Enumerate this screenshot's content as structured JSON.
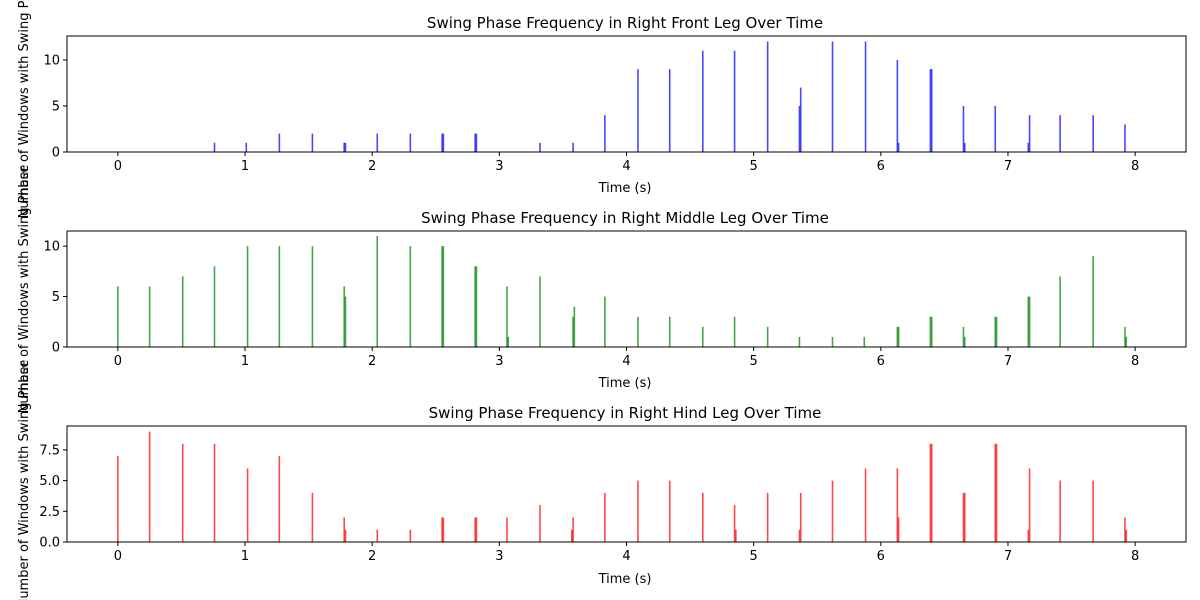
{
  "chart_data": [
    {
      "type": "bar",
      "title": "Swing Phase Frequency in Right Front Leg Over Time",
      "xlabel": "Time (s)",
      "ylabel": "Number of Windows with Swing Phase",
      "xlim": [
        -0.4,
        8.4
      ],
      "ylim": [
        0,
        12.6
      ],
      "xticks": [
        0,
        1,
        2,
        3,
        4,
        5,
        6,
        7,
        8
      ],
      "yticks": [
        0,
        5,
        10
      ],
      "color": "#0000ff",
      "x": [
        0.0,
        0.25,
        0.5,
        0.76,
        1.01,
        1.27,
        1.53,
        1.78,
        1.79,
        2.04,
        2.3,
        2.55,
        2.56,
        2.81,
        2.82,
        3.07,
        3.32,
        3.58,
        3.83,
        4.09,
        4.34,
        4.6,
        4.85,
        5.11,
        5.36,
        5.37,
        5.62,
        5.88,
        6.13,
        6.14,
        6.39,
        6.4,
        6.65,
        6.66,
        6.9,
        7.16,
        7.17,
        7.41,
        7.67,
        7.92,
        7.93
      ],
      "values": [
        0,
        0,
        0,
        1,
        1,
        2,
        2,
        1,
        1,
        2,
        2,
        2,
        2,
        2,
        2,
        0,
        1,
        1,
        4,
        9,
        9,
        11,
        11,
        12,
        5,
        7,
        12,
        12,
        10,
        1,
        9,
        9,
        5,
        1,
        5,
        1,
        4,
        4,
        4,
        3,
        0
      ]
    },
    {
      "type": "bar",
      "title": "Swing Phase Frequency in Right Middle Leg Over Time",
      "xlabel": "Time (s)",
      "ylabel": "Number of Windows with Swing Phase",
      "xlim": [
        -0.4,
        8.4
      ],
      "ylim": [
        0,
        11.5
      ],
      "xticks": [
        0,
        1,
        2,
        3,
        4,
        5,
        6,
        7,
        8
      ],
      "yticks": [
        0,
        5,
        10
      ],
      "color": "#008000",
      "x": [
        0.0,
        0.25,
        0.51,
        0.76,
        1.02,
        1.27,
        1.53,
        1.78,
        1.79,
        2.04,
        2.3,
        2.55,
        2.56,
        2.81,
        2.82,
        3.06,
        3.07,
        3.32,
        3.58,
        3.59,
        3.83,
        4.09,
        4.34,
        4.6,
        4.85,
        5.11,
        5.36,
        5.62,
        5.87,
        6.13,
        6.14,
        6.39,
        6.4,
        6.65,
        6.66,
        6.9,
        6.91,
        7.16,
        7.17,
        7.41,
        7.67,
        7.92,
        7.93
      ],
      "values": [
        6,
        6,
        7,
        8,
        10,
        10,
        10,
        6,
        5,
        11,
        10,
        10,
        10,
        8,
        8,
        6,
        1,
        7,
        3,
        4,
        5,
        3,
        3,
        2,
        3,
        2,
        1,
        1,
        1,
        2,
        2,
        3,
        3,
        2,
        1,
        3,
        3,
        5,
        5,
        7,
        9,
        2,
        1
      ]
    },
    {
      "type": "bar",
      "title": "Swing Phase Frequency in Right Hind Leg Over Time",
      "xlabel": "Time (s)",
      "ylabel": "Number of Windows with Swing Phase",
      "xlim": [
        -0.4,
        8.4
      ],
      "ylim": [
        0,
        9.45
      ],
      "xticks": [
        0,
        1,
        2,
        3,
        4,
        5,
        6,
        7,
        8
      ],
      "yticks": [
        0.0,
        2.5,
        5.0,
        7.5
      ],
      "color": "#ff0000",
      "x": [
        0.0,
        0.25,
        0.51,
        0.76,
        1.02,
        1.27,
        1.53,
        1.78,
        1.79,
        2.04,
        2.3,
        2.55,
        2.56,
        2.81,
        2.82,
        3.06,
        3.32,
        3.57,
        3.58,
        3.83,
        4.09,
        4.34,
        4.6,
        4.85,
        4.86,
        5.11,
        5.36,
        5.37,
        5.62,
        5.88,
        6.13,
        6.14,
        6.39,
        6.4,
        6.65,
        6.66,
        6.9,
        6.91,
        7.16,
        7.17,
        7.41,
        7.67,
        7.92,
        7.93
      ],
      "values": [
        7,
        9,
        8,
        8,
        6,
        7,
        4,
        2,
        1,
        1,
        1,
        2,
        2,
        2,
        2,
        2,
        3,
        1,
        2,
        4,
        5,
        5,
        4,
        3,
        1,
        4,
        1,
        4,
        5,
        6,
        6,
        2,
        8,
        8,
        4,
        4,
        8,
        8,
        1,
        6,
        5,
        5,
        2,
        1
      ]
    }
  ]
}
